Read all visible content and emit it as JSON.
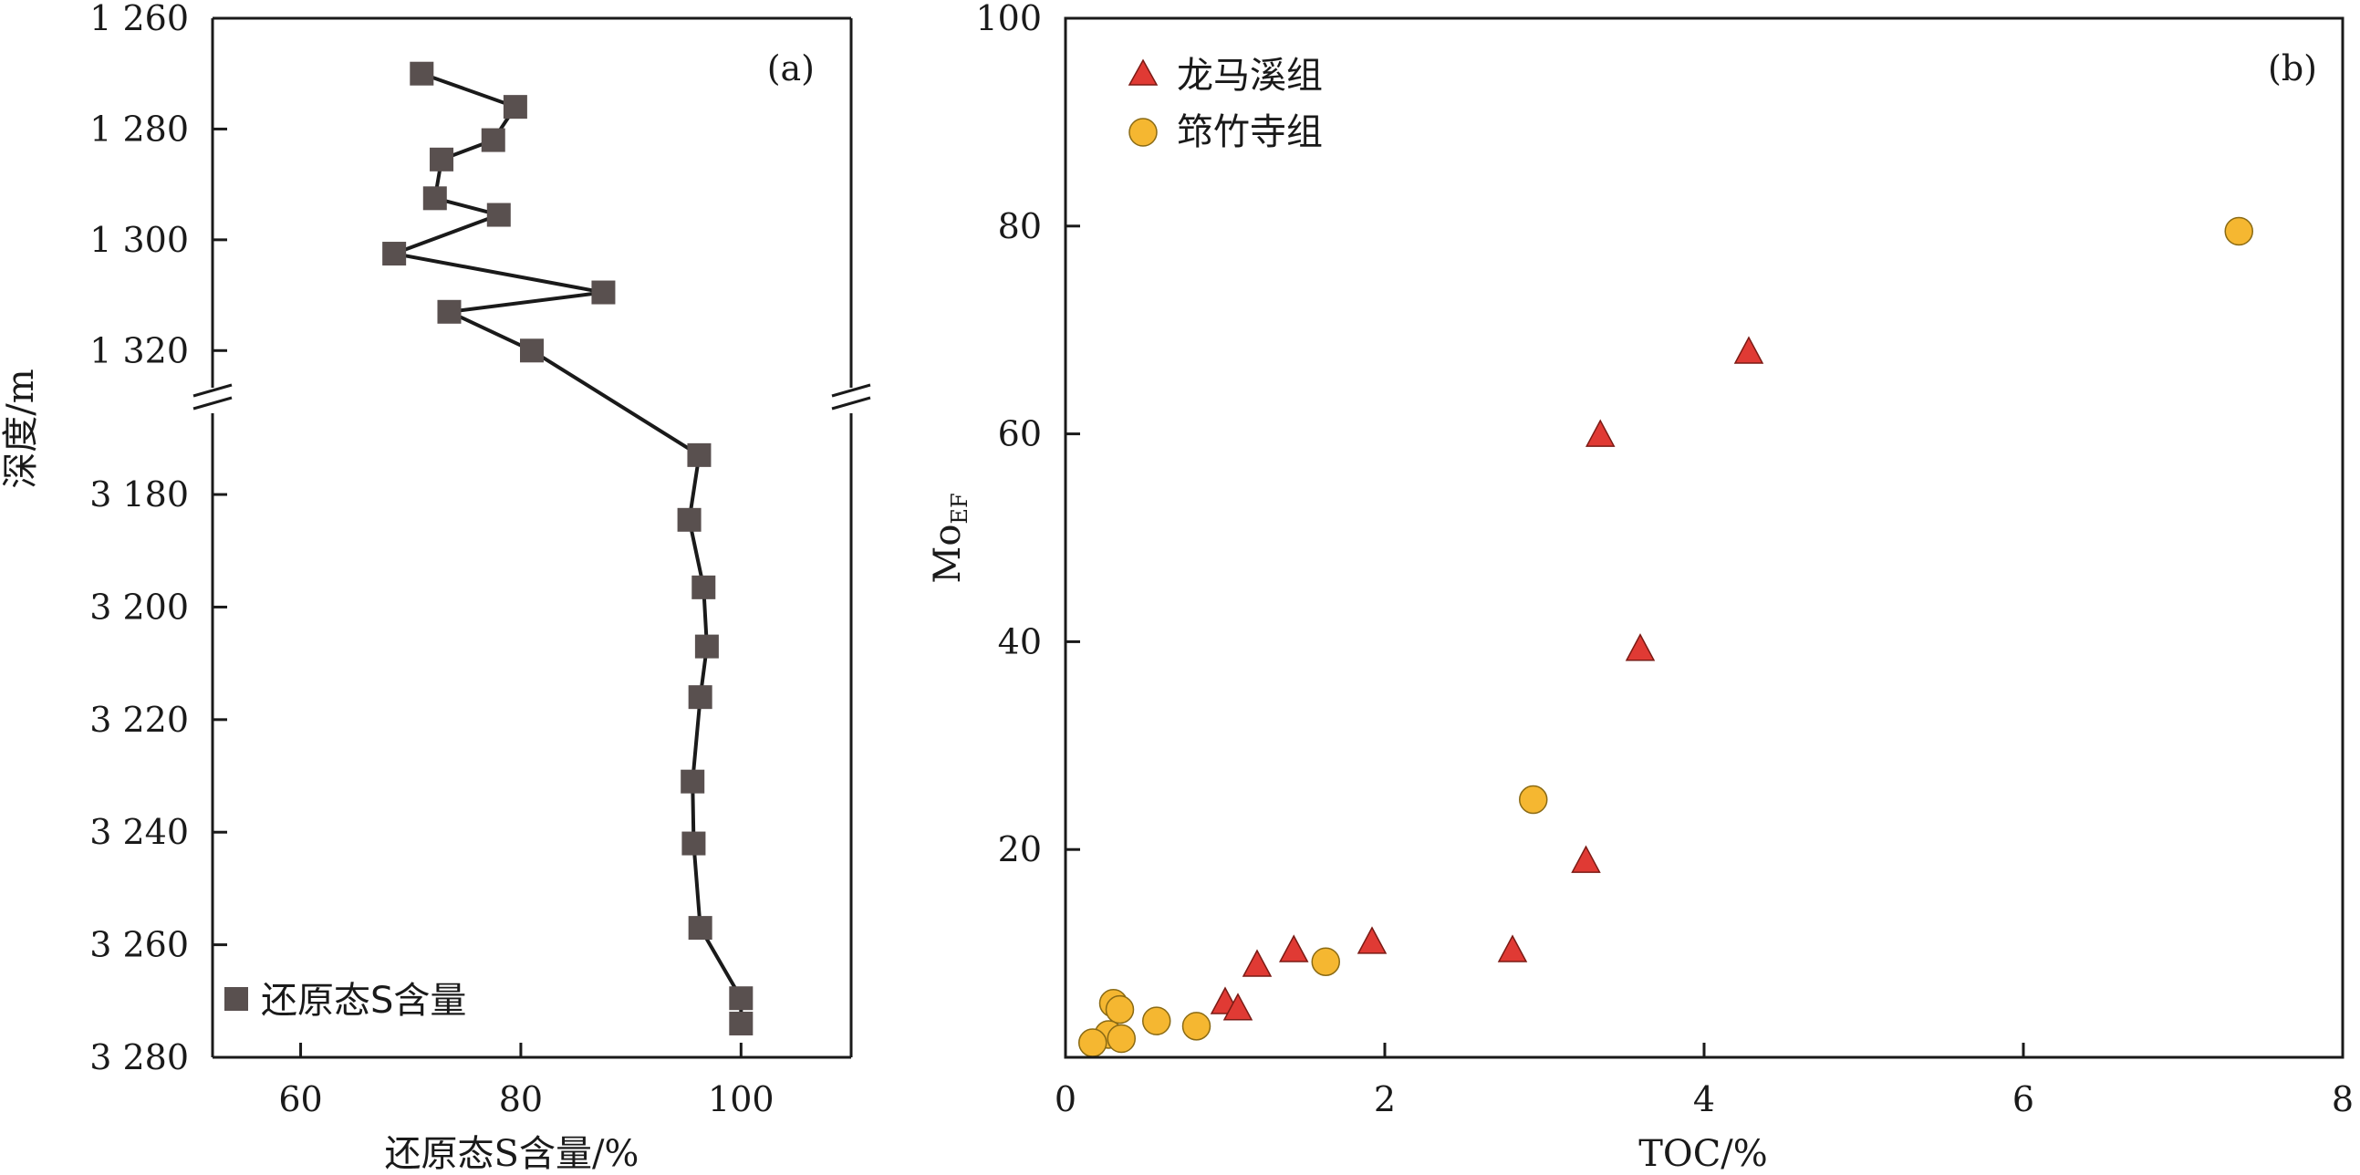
{
  "chart_data": [
    {
      "type": "line",
      "panel_label": "(a)",
      "xlabel": "还原态S含量/%",
      "ylabel": "深度/m",
      "xlim": [
        52,
        110
      ],
      "xticks": [
        "60",
        "80",
        "100"
      ],
      "y_break": true,
      "y_upper": {
        "range": [
          1260,
          1330
        ],
        "ticks": [
          "1 260",
          "1 280",
          "1 300",
          "1 320"
        ],
        "reversed": true
      },
      "y_lower": {
        "range": [
          3162,
          3280
        ],
        "ticks": [
          "3 180",
          "3 200",
          "3 220",
          "3 240",
          "3 260",
          "3 280"
        ],
        "reversed": true
      },
      "legend": {
        "position": "bottom-left",
        "label": "还原态S含量",
        "marker": "square"
      },
      "marker_color": "#59504f",
      "series": [
        {
          "name": "还原态S含量",
          "points": [
            {
              "x": 71.0,
              "depth": 1270.0,
              "segment": "upper"
            },
            {
              "x": 79.5,
              "depth": 1276.0,
              "segment": "upper"
            },
            {
              "x": 77.5,
              "depth": 1282.0,
              "segment": "upper"
            },
            {
              "x": 72.8,
              "depth": 1285.5,
              "segment": "upper"
            },
            {
              "x": 72.2,
              "depth": 1292.5,
              "segment": "upper"
            },
            {
              "x": 78.0,
              "depth": 1295.5,
              "segment": "upper"
            },
            {
              "x": 68.5,
              "depth": 1302.5,
              "segment": "upper"
            },
            {
              "x": 87.5,
              "depth": 1309.5,
              "segment": "upper"
            },
            {
              "x": 73.5,
              "depth": 1313.0,
              "segment": "upper"
            },
            {
              "x": 81.0,
              "depth": 1320.0,
              "segment": "upper"
            },
            {
              "x": 96.2,
              "depth": 3173.0,
              "segment": "lower"
            },
            {
              "x": 95.3,
              "depth": 3184.5,
              "segment": "lower"
            },
            {
              "x": 96.6,
              "depth": 3196.5,
              "segment": "lower"
            },
            {
              "x": 96.9,
              "depth": 3207.0,
              "segment": "lower"
            },
            {
              "x": 96.3,
              "depth": 3216.0,
              "segment": "lower"
            },
            {
              "x": 95.6,
              "depth": 3231.0,
              "segment": "lower"
            },
            {
              "x": 95.7,
              "depth": 3242.0,
              "segment": "lower"
            },
            {
              "x": 96.3,
              "depth": 3257.0,
              "segment": "lower"
            },
            {
              "x": 100.0,
              "depth": 3269.5,
              "segment": "lower"
            },
            {
              "x": 100.0,
              "depth": 3274.0,
              "segment": "lower"
            }
          ]
        }
      ]
    },
    {
      "type": "scatter",
      "panel_label": "(b)",
      "xlabel": "TOC/%",
      "ylabel_main": "Mo",
      "ylabel_sub": "EF",
      "xlim": [
        0,
        8
      ],
      "ylim": [
        0,
        100
      ],
      "xticks": [
        "0",
        "2",
        "4",
        "6",
        "8"
      ],
      "yticks": [
        "20",
        "40",
        "60",
        "80",
        "100"
      ],
      "legend": {
        "position": "top-left"
      },
      "series": [
        {
          "name": "龙马溪组",
          "marker": "triangle",
          "color": "#e03a34",
          "points": [
            [
              4.28,
              67.8
            ],
            [
              3.35,
              59.8
            ],
            [
              3.6,
              39.2
            ],
            [
              3.26,
              18.8
            ],
            [
              2.8,
              10.2
            ],
            [
              1.92,
              11.0
            ],
            [
              1.43,
              10.2
            ],
            [
              1.2,
              8.8
            ],
            [
              1.0,
              5.2
            ],
            [
              1.08,
              4.6
            ]
          ]
        },
        {
          "name": "筇竹寺组",
          "marker": "circle",
          "color": "#f5b731",
          "points": [
            [
              7.35,
              79.5
            ],
            [
              2.93,
              24.8
            ],
            [
              1.63,
              9.2
            ],
            [
              0.82,
              3.0
            ],
            [
              0.57,
              3.5
            ],
            [
              0.3,
              5.2
            ],
            [
              0.34,
              4.6
            ],
            [
              0.27,
              2.2
            ],
            [
              0.35,
              1.8
            ],
            [
              0.17,
              1.4
            ]
          ]
        }
      ]
    }
  ]
}
